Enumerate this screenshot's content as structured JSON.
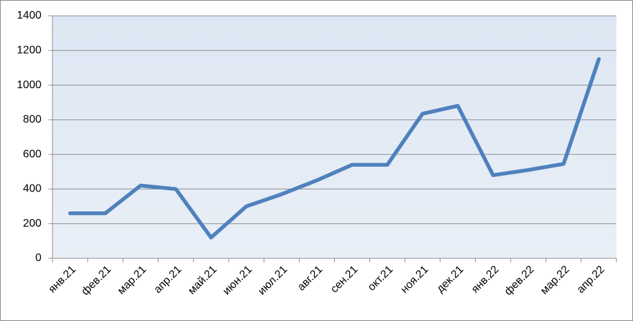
{
  "chart_data": {
    "type": "line",
    "categories": [
      "янв.21",
      "фев.21",
      "мар.21",
      "апр.21",
      "май.21",
      "июн.21",
      "июл.21",
      "авг.21",
      "сен.21",
      "окт.21",
      "ноя.21",
      "дек.21",
      "янв.22",
      "фев.22",
      "мар.22",
      "апр.22"
    ],
    "values": [
      260,
      260,
      420,
      400,
      120,
      300,
      370,
      450,
      540,
      540,
      835,
      880,
      480,
      510,
      545,
      1150
    ],
    "color": "#4f81bd",
    "ylim": [
      0,
      1400
    ],
    "yticks": [
      0,
      200,
      400,
      600,
      800,
      1000,
      1200,
      1400
    ],
    "grid": true
  }
}
